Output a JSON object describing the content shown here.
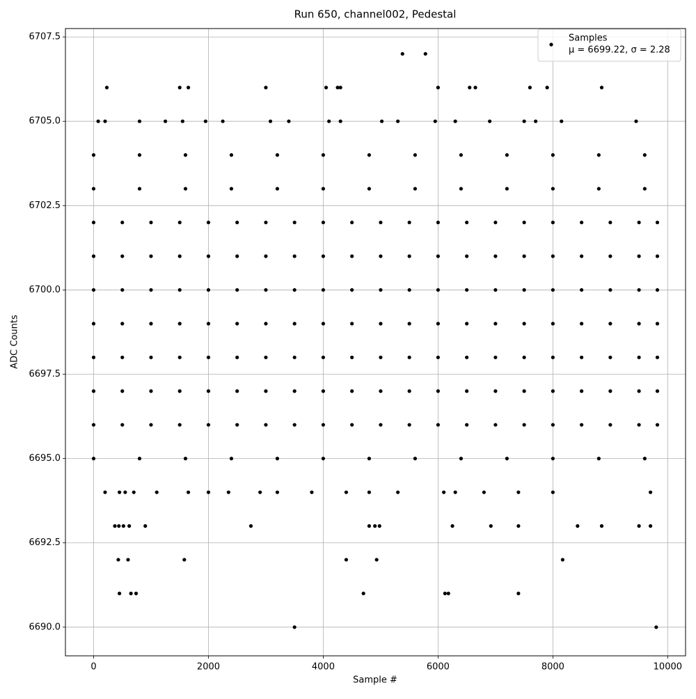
{
  "chart_data": {
    "type": "scatter",
    "title": "Run 650, channel002, Pedestal",
    "x_label": "Sample #",
    "y_label": "ADC Counts",
    "stats_label": "μ = 6699.22, σ = 2.28",
    "xlim": [
      -491,
      10311
    ],
    "ylim": [
      6689.15,
      6707.75
    ],
    "xticks": [
      0,
      2000,
      4000,
      6000,
      8000,
      10000
    ],
    "yticks": [
      {
        "value": 6690,
        "label": "6690.0"
      },
      {
        "value": 6692.5,
        "label": "6692.5"
      },
      {
        "value": 6695,
        "label": "6695.0"
      },
      {
        "value": 6697.5,
        "label": "6697.5"
      },
      {
        "value": 6700,
        "label": "6700.0"
      },
      {
        "value": 6702.5,
        "label": "6702.5"
      },
      {
        "value": 6705,
        "label": "6705.0"
      },
      {
        "value": 6707.5,
        "label": "6707.5"
      }
    ],
    "grid": true,
    "legend": "upper right",
    "series": [
      {
        "name": "Samples",
        "color": "#000000",
        "x": [
          0,
          500,
          1000,
          1500,
          2000,
          2500,
          3000,
          3500,
          4000,
          4500,
          5000,
          5500,
          6000,
          6500,
          7000,
          7500,
          8000,
          8500,
          9000,
          9500,
          9820,
          0,
          500,
          1000,
          1500,
          2000,
          2500,
          3000,
          3500,
          4000,
          4500,
          5000,
          5500,
          6000,
          6500,
          7000,
          7500,
          8000,
          8500,
          9000,
          9500,
          9820,
          0,
          500,
          1000,
          1500,
          2000,
          2500,
          3000,
          3500,
          4000,
          4500,
          5000,
          5500,
          6000,
          6500,
          7000,
          7500,
          8000,
          8500,
          9000,
          9500,
          9820,
          0,
          500,
          1000,
          1500,
          2000,
          2500,
          3000,
          3500,
          4000,
          4500,
          5000,
          5500,
          6000,
          6500,
          7000,
          7500,
          8000,
          8500,
          9000,
          9500,
          9820,
          0,
          500,
          1000,
          1500,
          2000,
          2500,
          3000,
          3500,
          4000,
          4500,
          5000,
          5500,
          6000,
          6500,
          7000,
          7500,
          8000,
          8500,
          9000,
          9500,
          9820,
          0,
          500,
          1000,
          1500,
          2000,
          2500,
          3000,
          3500,
          4000,
          4500,
          5000,
          5500,
          6000,
          6500,
          7000,
          7500,
          8000,
          8500,
          9000,
          9500,
          9820,
          0,
          500,
          1000,
          1500,
          2000,
          2500,
          3000,
          3500,
          4000,
          4500,
          5000,
          5500,
          6000,
          6500,
          7000,
          7500,
          8000,
          8500,
          9000,
          9500,
          9820,
          0,
          800,
          1600,
          2400,
          3200,
          4000,
          4800,
          5600,
          6400,
          7200,
          8000,
          8800,
          9600,
          0,
          800,
          1600,
          2400,
          3200,
          4000,
          4800,
          5600,
          6400,
          7200,
          8000,
          8800,
          9600,
          0,
          800,
          1600,
          2400,
          3200,
          4000,
          4800,
          5600,
          6400,
          7200,
          8000,
          8800,
          9600,
          80,
          200,
          800,
          1250,
          1550,
          1950,
          2250,
          3080,
          3400,
          4100,
          4300,
          5020,
          5300,
          5950,
          6300,
          6900,
          7500,
          7700,
          8150,
          9450,
          200,
          450,
          550,
          700,
          1100,
          1650,
          2000,
          2350,
          2900,
          3200,
          3800,
          4400,
          4800,
          5300,
          6100,
          6300,
          6800,
          7400,
          8000,
          9700,
          230,
          1500,
          1650,
          3000,
          4050,
          4250,
          4300,
          6000,
          6550,
          6650,
          7600,
          7900,
          8850,
          5380,
          5780,
          370,
          440,
          520,
          620,
          900,
          2740,
          4800,
          4900,
          4980,
          6250,
          6920,
          7400,
          8430,
          8850,
          9500,
          9700,
          430,
          600,
          1580,
          4400,
          4930,
          8170,
          450,
          650,
          740,
          4700,
          6120,
          6180,
          7400,
          3500,
          9800
        ],
        "values": [
          6696,
          6696,
          6696,
          6696,
          6696,
          6696,
          6696,
          6696,
          6696,
          6696,
          6696,
          6696,
          6696,
          6696,
          6696,
          6696,
          6696,
          6696,
          6696,
          6696,
          6696,
          6697,
          6697,
          6697,
          6697,
          6697,
          6697,
          6697,
          6697,
          6697,
          6697,
          6697,
          6697,
          6697,
          6697,
          6697,
          6697,
          6697,
          6697,
          6697,
          6697,
          6697,
          6698,
          6698,
          6698,
          6698,
          6698,
          6698,
          6698,
          6698,
          6698,
          6698,
          6698,
          6698,
          6698,
          6698,
          6698,
          6698,
          6698,
          6698,
          6698,
          6698,
          6698,
          6699,
          6699,
          6699,
          6699,
          6699,
          6699,
          6699,
          6699,
          6699,
          6699,
          6699,
          6699,
          6699,
          6699,
          6699,
          6699,
          6699,
          6699,
          6699,
          6699,
          6699,
          6700,
          6700,
          6700,
          6700,
          6700,
          6700,
          6700,
          6700,
          6700,
          6700,
          6700,
          6700,
          6700,
          6700,
          6700,
          6700,
          6700,
          6700,
          6700,
          6700,
          6700,
          6701,
          6701,
          6701,
          6701,
          6701,
          6701,
          6701,
          6701,
          6701,
          6701,
          6701,
          6701,
          6701,
          6701,
          6701,
          6701,
          6701,
          6701,
          6701,
          6701,
          6701,
          6702,
          6702,
          6702,
          6702,
          6702,
          6702,
          6702,
          6702,
          6702,
          6702,
          6702,
          6702,
          6702,
          6702,
          6702,
          6702,
          6702,
          6702,
          6702,
          6702,
          6702,
          6695,
          6695,
          6695,
          6695,
          6695,
          6695,
          6695,
          6695,
          6695,
          6695,
          6695,
          6695,
          6695,
          6703,
          6703,
          6703,
          6703,
          6703,
          6703,
          6703,
          6703,
          6703,
          6703,
          6703,
          6703,
          6703,
          6704,
          6704,
          6704,
          6704,
          6704,
          6704,
          6704,
          6704,
          6704,
          6704,
          6704,
          6704,
          6704,
          6705,
          6705,
          6705,
          6705,
          6705,
          6705,
          6705,
          6705,
          6705,
          6705,
          6705,
          6705,
          6705,
          6705,
          6705,
          6705,
          6705,
          6705,
          6705,
          6705,
          6694,
          6694,
          6694,
          6694,
          6694,
          6694,
          6694,
          6694,
          6694,
          6694,
          6694,
          6694,
          6694,
          6694,
          6694,
          6694,
          6694,
          6694,
          6694,
          6694,
          6706,
          6706,
          6706,
          6706,
          6706,
          6706,
          6706,
          6706,
          6706,
          6706,
          6706,
          6706,
          6706,
          6707,
          6707,
          6693,
          6693,
          6693,
          6693,
          6693,
          6693,
          6693,
          6693,
          6693,
          6693,
          6693,
          6693,
          6693,
          6693,
          6693,
          6693,
          6692,
          6692,
          6692,
          6692,
          6692,
          6692,
          6691,
          6691,
          6691,
          6691,
          6691,
          6691,
          6691,
          6690,
          6690
        ]
      }
    ]
  }
}
